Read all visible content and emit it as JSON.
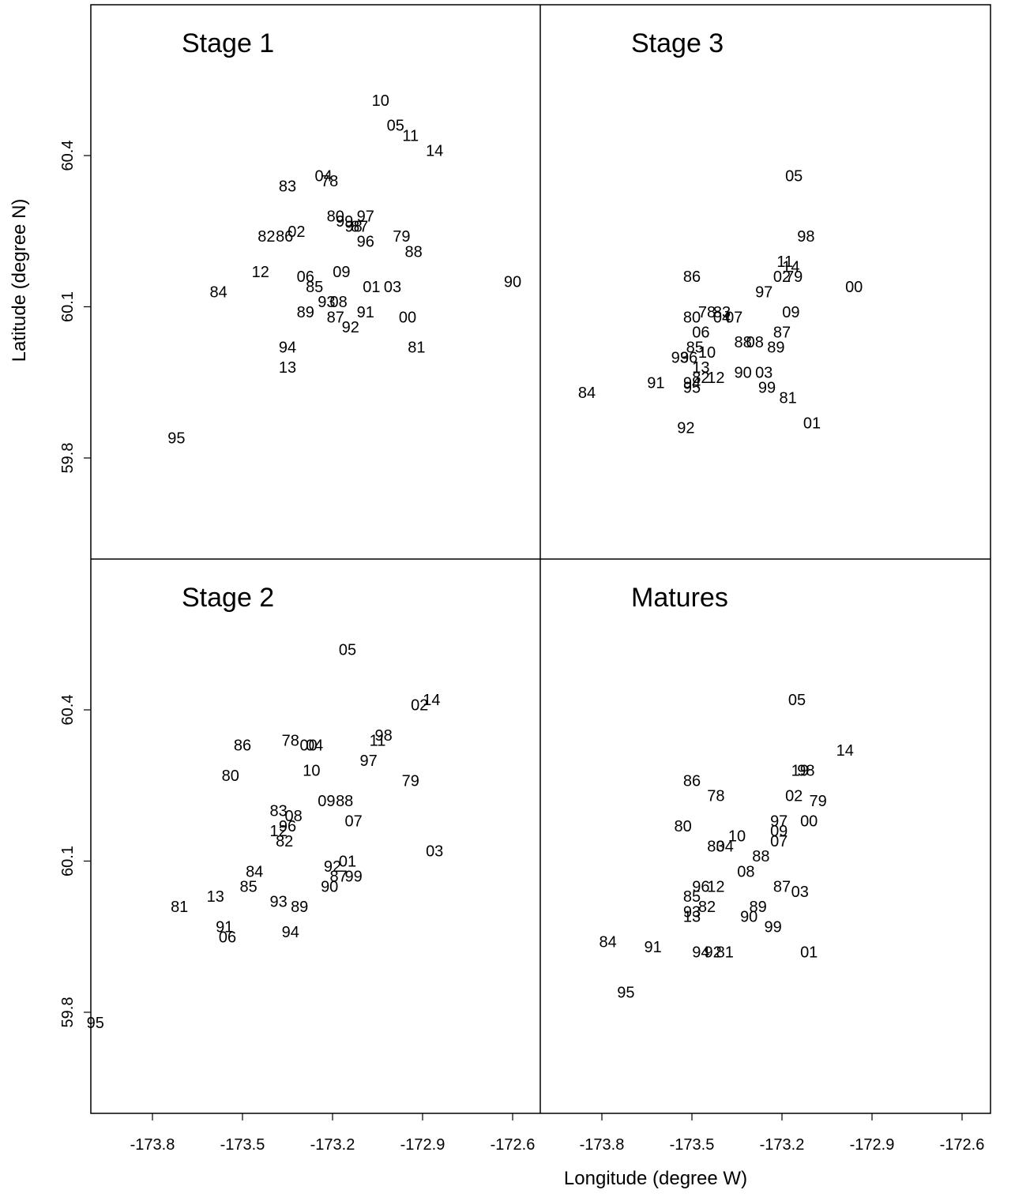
{
  "chart_data": {
    "type": "scatter",
    "marker": "year-label",
    "xlabel": "Longitude (degree W)",
    "ylabel": "Latitude (degree N)",
    "x_ticks": [
      "-173.8",
      "-173.5",
      "-173.2",
      "-172.9",
      "-172.6"
    ],
    "y_ticks": [
      "59.8",
      "60.1",
      "60.4"
    ],
    "xlim": [
      -174.0,
      -172.5
    ],
    "ylim": [
      59.6,
      60.7
    ],
    "panels": [
      {
        "title": "Stage 1",
        "points": [
          {
            "label": "10",
            "x": -173.04,
            "y": 60.51
          },
          {
            "label": "05",
            "x": -172.99,
            "y": 60.46
          },
          {
            "label": "11",
            "x": -172.94,
            "y": 60.44
          },
          {
            "label": "14",
            "x": -172.86,
            "y": 60.41
          },
          {
            "label": "04",
            "x": -173.23,
            "y": 60.36
          },
          {
            "label": "78",
            "x": -173.21,
            "y": 60.35
          },
          {
            "label": "83",
            "x": -173.35,
            "y": 60.34
          },
          {
            "label": "80",
            "x": -173.19,
            "y": 60.28
          },
          {
            "label": "99",
            "x": -173.16,
            "y": 60.27
          },
          {
            "label": "98",
            "x": -173.13,
            "y": 60.26
          },
          {
            "label": "87",
            "x": -173.11,
            "y": 60.26
          },
          {
            "label": "97",
            "x": -173.09,
            "y": 60.28
          },
          {
            "label": "02",
            "x": -173.32,
            "y": 60.25
          },
          {
            "label": "86",
            "x": -173.36,
            "y": 60.24
          },
          {
            "label": "82",
            "x": -173.42,
            "y": 60.24
          },
          {
            "label": "79",
            "x": -172.97,
            "y": 60.24
          },
          {
            "label": "96",
            "x": -173.09,
            "y": 60.23
          },
          {
            "label": "88",
            "x": -172.93,
            "y": 60.21
          },
          {
            "label": "12",
            "x": -173.44,
            "y": 60.17
          },
          {
            "label": "09",
            "x": -173.17,
            "y": 60.17
          },
          {
            "label": "06",
            "x": -173.29,
            "y": 60.16
          },
          {
            "label": "01",
            "x": -173.07,
            "y": 60.14
          },
          {
            "label": "03",
            "x": -173.0,
            "y": 60.14
          },
          {
            "label": "90",
            "x": -172.6,
            "y": 60.15
          },
          {
            "label": "85",
            "x": -173.26,
            "y": 60.14
          },
          {
            "label": "84",
            "x": -173.58,
            "y": 60.13
          },
          {
            "label": "93",
            "x": -173.22,
            "y": 60.11
          },
          {
            "label": "08",
            "x": -173.18,
            "y": 60.11
          },
          {
            "label": "89",
            "x": -173.29,
            "y": 60.09
          },
          {
            "label": "87",
            "x": -173.19,
            "y": 60.08
          },
          {
            "label": "91",
            "x": -173.09,
            "y": 60.09
          },
          {
            "label": "00",
            "x": -172.95,
            "y": 60.08
          },
          {
            "label": "92",
            "x": -173.14,
            "y": 60.06
          },
          {
            "label": "94",
            "x": -173.35,
            "y": 60.02
          },
          {
            "label": "81",
            "x": -172.92,
            "y": 60.02
          },
          {
            "label": "13",
            "x": -173.35,
            "y": 59.98
          },
          {
            "label": "95",
            "x": -173.72,
            "y": 59.84
          }
        ]
      },
      {
        "title": "Stage 3",
        "points": [
          {
            "label": "05",
            "x": -173.16,
            "y": 60.36
          },
          {
            "label": "98",
            "x": -173.12,
            "y": 60.24
          },
          {
            "label": "11",
            "x": -173.19,
            "y": 60.19
          },
          {
            "label": "14",
            "x": -173.17,
            "y": 60.18
          },
          {
            "label": "86",
            "x": -173.5,
            "y": 60.16
          },
          {
            "label": "02",
            "x": -173.2,
            "y": 60.16
          },
          {
            "label": "79",
            "x": -173.16,
            "y": 60.16
          },
          {
            "label": "00",
            "x": -172.96,
            "y": 60.14
          },
          {
            "label": "97",
            "x": -173.26,
            "y": 60.13
          },
          {
            "label": "83",
            "x": -173.4,
            "y": 60.09
          },
          {
            "label": "78",
            "x": -173.45,
            "y": 60.09
          },
          {
            "label": "80",
            "x": -173.5,
            "y": 60.08
          },
          {
            "label": "04",
            "x": -173.4,
            "y": 60.08
          },
          {
            "label": "07",
            "x": -173.36,
            "y": 60.08
          },
          {
            "label": "09",
            "x": -173.17,
            "y": 60.09
          },
          {
            "label": "06",
            "x": -173.47,
            "y": 60.05
          },
          {
            "label": "87",
            "x": -173.2,
            "y": 60.05
          },
          {
            "label": "88",
            "x": -173.33,
            "y": 60.03
          },
          {
            "label": "08",
            "x": -173.29,
            "y": 60.03
          },
          {
            "label": "89",
            "x": -173.22,
            "y": 60.02
          },
          {
            "label": "85",
            "x": -173.49,
            "y": 60.02
          },
          {
            "label": "10",
            "x": -173.45,
            "y": 60.01
          },
          {
            "label": "93",
            "x": -173.54,
            "y": 60.0
          },
          {
            "label": "96",
            "x": -173.51,
            "y": 60.0
          },
          {
            "label": "13",
            "x": -173.47,
            "y": 59.98
          },
          {
            "label": "90",
            "x": -173.33,
            "y": 59.97
          },
          {
            "label": "03",
            "x": -173.26,
            "y": 59.97
          },
          {
            "label": "82",
            "x": -173.47,
            "y": 59.96
          },
          {
            "label": "12",
            "x": -173.42,
            "y": 59.96
          },
          {
            "label": "91",
            "x": -173.62,
            "y": 59.95
          },
          {
            "label": "94",
            "x": -173.5,
            "y": 59.95
          },
          {
            "label": "95",
            "x": -173.5,
            "y": 59.94
          },
          {
            "label": "99",
            "x": -173.25,
            "y": 59.94
          },
          {
            "label": "81",
            "x": -173.18,
            "y": 59.92
          },
          {
            "label": "84",
            "x": -173.85,
            "y": 59.93
          },
          {
            "label": "01",
            "x": -173.1,
            "y": 59.87
          },
          {
            "label": "92",
            "x": -173.52,
            "y": 59.86
          }
        ]
      },
      {
        "title": "Stage 2",
        "points": [
          {
            "label": "05",
            "x": -173.15,
            "y": 60.52
          },
          {
            "label": "14",
            "x": -172.87,
            "y": 60.42
          },
          {
            "label": "02",
            "x": -172.91,
            "y": 60.41
          },
          {
            "label": "98",
            "x": -173.03,
            "y": 60.35
          },
          {
            "label": "11",
            "x": -173.05,
            "y": 60.34
          },
          {
            "label": "78",
            "x": -173.34,
            "y": 60.34
          },
          {
            "label": "00",
            "x": -173.28,
            "y": 60.33
          },
          {
            "label": "04",
            "x": -173.26,
            "y": 60.33
          },
          {
            "label": "86",
            "x": -173.5,
            "y": 60.33
          },
          {
            "label": "97",
            "x": -173.08,
            "y": 60.3
          },
          {
            "label": "80",
            "x": -173.54,
            "y": 60.27
          },
          {
            "label": "10",
            "x": -173.27,
            "y": 60.28
          },
          {
            "label": "79",
            "x": -172.94,
            "y": 60.26
          },
          {
            "label": "09",
            "x": -173.22,
            "y": 60.22
          },
          {
            "label": "88",
            "x": -173.16,
            "y": 60.22
          },
          {
            "label": "83",
            "x": -173.38,
            "y": 60.2
          },
          {
            "label": "08",
            "x": -173.33,
            "y": 60.19
          },
          {
            "label": "07",
            "x": -173.13,
            "y": 60.18
          },
          {
            "label": "96",
            "x": -173.35,
            "y": 60.17
          },
          {
            "label": "12",
            "x": -173.38,
            "y": 60.16
          },
          {
            "label": "82",
            "x": -173.36,
            "y": 60.14
          },
          {
            "label": "03",
            "x": -172.86,
            "y": 60.12
          },
          {
            "label": "01",
            "x": -173.15,
            "y": 60.1
          },
          {
            "label": "92",
            "x": -173.2,
            "y": 60.09
          },
          {
            "label": "84",
            "x": -173.46,
            "y": 60.08
          },
          {
            "label": "87",
            "x": -173.18,
            "y": 60.07
          },
          {
            "label": "99",
            "x": -173.13,
            "y": 60.07
          },
          {
            "label": "90",
            "x": -173.21,
            "y": 60.05
          },
          {
            "label": "85",
            "x": -173.48,
            "y": 60.05
          },
          {
            "label": "13",
            "x": -173.59,
            "y": 60.03
          },
          {
            "label": "93",
            "x": -173.38,
            "y": 60.02
          },
          {
            "label": "89",
            "x": -173.31,
            "y": 60.01
          },
          {
            "label": "81",
            "x": -173.71,
            "y": 60.01
          },
          {
            "label": "91",
            "x": -173.56,
            "y": 59.97
          },
          {
            "label": "94",
            "x": -173.34,
            "y": 59.96
          },
          {
            "label": "06",
            "x": -173.55,
            "y": 59.95
          },
          {
            "label": "95",
            "x": -173.99,
            "y": 59.78
          }
        ]
      },
      {
        "title": "Matures",
        "points": [
          {
            "label": "05",
            "x": -173.15,
            "y": 60.42
          },
          {
            "label": "14",
            "x": -172.99,
            "y": 60.32
          },
          {
            "label": "19",
            "x": -173.14,
            "y": 60.28
          },
          {
            "label": "98",
            "x": -173.12,
            "y": 60.28
          },
          {
            "label": "86",
            "x": -173.5,
            "y": 60.26
          },
          {
            "label": "02",
            "x": -173.16,
            "y": 60.23
          },
          {
            "label": "79",
            "x": -173.08,
            "y": 60.22
          },
          {
            "label": "78",
            "x": -173.42,
            "y": 60.23
          },
          {
            "label": "00",
            "x": -173.11,
            "y": 60.18
          },
          {
            "label": "97",
            "x": -173.21,
            "y": 60.18
          },
          {
            "label": "09",
            "x": -173.21,
            "y": 60.16
          },
          {
            "label": "80",
            "x": -173.53,
            "y": 60.17
          },
          {
            "label": "10",
            "x": -173.35,
            "y": 60.15
          },
          {
            "label": "07",
            "x": -173.21,
            "y": 60.14
          },
          {
            "label": "83",
            "x": -173.42,
            "y": 60.13
          },
          {
            "label": "04",
            "x": -173.39,
            "y": 60.13
          },
          {
            "label": "88",
            "x": -173.27,
            "y": 60.11
          },
          {
            "label": "08",
            "x": -173.32,
            "y": 60.08
          },
          {
            "label": "96",
            "x": -173.47,
            "y": 60.05
          },
          {
            "label": "12",
            "x": -173.42,
            "y": 60.05
          },
          {
            "label": "87",
            "x": -173.2,
            "y": 60.05
          },
          {
            "label": "03",
            "x": -173.14,
            "y": 60.04
          },
          {
            "label": "85",
            "x": -173.5,
            "y": 60.03
          },
          {
            "label": "89",
            "x": -173.28,
            "y": 60.01
          },
          {
            "label": "82",
            "x": -173.45,
            "y": 60.01
          },
          {
            "label": "93",
            "x": -173.5,
            "y": 60.0
          },
          {
            "label": "13",
            "x": -173.5,
            "y": 59.99
          },
          {
            "label": "90",
            "x": -173.31,
            "y": 59.99
          },
          {
            "label": "99",
            "x": -173.23,
            "y": 59.97
          },
          {
            "label": "84",
            "x": -173.78,
            "y": 59.94
          },
          {
            "label": "91",
            "x": -173.63,
            "y": 59.93
          },
          {
            "label": "94",
            "x": -173.47,
            "y": 59.92
          },
          {
            "label": "92",
            "x": -173.43,
            "y": 59.92
          },
          {
            "label": "81",
            "x": -173.39,
            "y": 59.92
          },
          {
            "label": "01",
            "x": -173.11,
            "y": 59.92
          },
          {
            "label": "95",
            "x": -173.72,
            "y": 59.84
          }
        ]
      }
    ]
  }
}
